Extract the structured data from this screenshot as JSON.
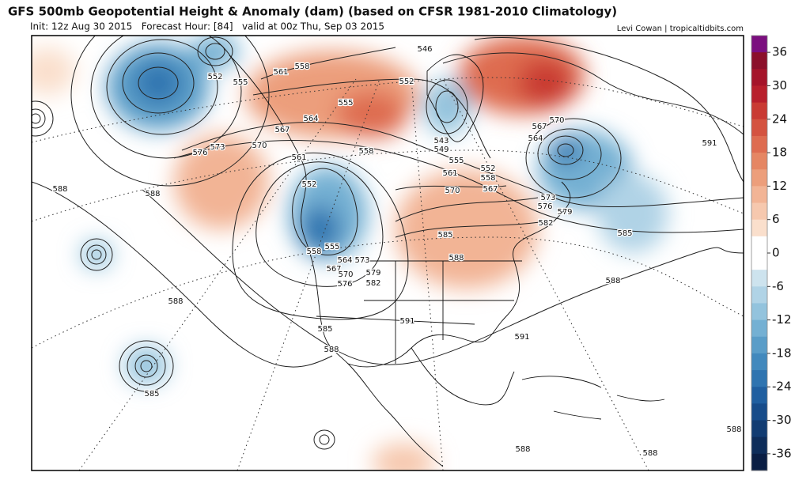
{
  "header": {
    "title": "GFS 500mb Geopotential Height & Anomaly (dam) (based on CFSR 1981-2010 Climatology)",
    "subtitle": "Init: 12z Aug 30 2015   Forecast Hour: [84]   valid at 00z Thu, Sep 03 2015",
    "credit": "Levi Cowan | tropicaltidbits.com"
  },
  "map": {
    "contour_labels": [
      "552",
      "555",
      "561",
      "558",
      "555",
      "564",
      "567",
      "570",
      "573",
      "576",
      "561",
      "558",
      "588",
      "588",
      "552",
      "546",
      "552",
      "543",
      "549",
      "555",
      "552",
      "561",
      "558",
      "570",
      "567",
      "567",
      "570",
      "564",
      "591",
      "573",
      "576",
      "579",
      "582",
      "585",
      "585",
      "588",
      "588",
      "558",
      "555",
      "564",
      "573",
      "567",
      "579",
      "570",
      "582",
      "576",
      "588",
      "591",
      "585",
      "588",
      "591",
      "585",
      "588",
      "588",
      "588"
    ]
  },
  "colorbar": {
    "lim": [
      -39,
      39
    ],
    "ticks": [
      36,
      30,
      24,
      18,
      12,
      6,
      0,
      -6,
      -12,
      -18,
      -24,
      -30,
      -36
    ],
    "colors": [
      "#7b0f7f",
      "#8b0f2a",
      "#a5142a",
      "#b81f2c",
      "#c93a33",
      "#d45340",
      "#de6c50",
      "#e58663",
      "#ec9e7b",
      "#f2b495",
      "#f6c8ae",
      "#fadfcc",
      "#ffffff",
      "#ffffff",
      "#cde3ee",
      "#b0d3e6",
      "#93c3dd",
      "#74b0d3",
      "#5a9dc8",
      "#4289bd",
      "#2f74b0",
      "#205fa0",
      "#174c8a",
      "#123c72",
      "#0e2d5a",
      "#0a1e44"
    ]
  }
}
